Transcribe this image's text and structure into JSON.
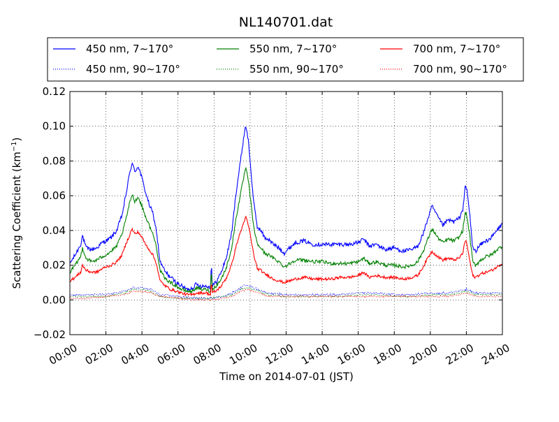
{
  "chart_data": {
    "type": "line",
    "title": "NL140701.dat",
    "xlabel": "Time on 2014-07-01 (JST)",
    "ylabel_main": "Scattering Coefficient (km",
    "ylabel_sup": "−1",
    "ylabel_close": ")",
    "xlim": [
      0,
      24
    ],
    "ylim": [
      -0.02,
      0.12
    ],
    "grid": true,
    "legend_position": "top (above plot)",
    "x_ticks": [
      0,
      2,
      4,
      6,
      8,
      10,
      12,
      14,
      16,
      18,
      20,
      22,
      24
    ],
    "x_tick_labels": [
      "00:00",
      "02:00",
      "04:00",
      "06:00",
      "08:00",
      "10:00",
      "12:00",
      "14:00",
      "16:00",
      "18:00",
      "20:00",
      "22:00",
      "24:00"
    ],
    "y_ticks": [
      -0.02,
      0.0,
      0.02,
      0.04,
      0.06,
      0.08,
      0.1,
      0.12
    ],
    "y_tick_labels": [
      "−0.02",
      "0.00",
      "0.02",
      "0.04",
      "0.06",
      "0.08",
      "0.10",
      "0.12"
    ],
    "series": [
      {
        "name": "450 nm, 7∼170°",
        "color": "#0000ff",
        "style": "solid",
        "x": [
          0,
          0.3,
          0.6,
          0.7,
          0.9,
          1.2,
          1.5,
          1.8,
          2.0,
          2.3,
          2.6,
          2.9,
          3.1,
          3.3,
          3.45,
          3.6,
          3.8,
          4.0,
          4.2,
          4.4,
          4.6,
          4.8,
          5.0,
          5.3,
          5.6,
          5.9,
          6.2,
          6.5,
          6.8,
          7.0,
          7.3,
          7.6,
          7.8,
          7.85,
          7.9,
          8.1,
          8.4,
          8.7,
          9.0,
          9.2,
          9.4,
          9.6,
          9.75,
          9.9,
          10.0,
          10.2,
          10.4,
          10.6,
          10.8,
          11.0,
          11.3,
          11.6,
          11.9,
          12.2,
          12.5,
          13.0,
          13.5,
          14.0,
          14.5,
          15.0,
          15.5,
          16.0,
          16.3,
          16.6,
          17.0,
          17.5,
          18.0,
          18.5,
          19.0,
          19.3,
          19.6,
          19.9,
          20.1,
          20.4,
          20.7,
          21.0,
          21.3,
          21.6,
          21.8,
          21.95,
          22.05,
          22.2,
          22.35,
          22.5,
          22.8,
          23.1,
          23.4,
          23.7,
          24.0
        ],
        "y": [
          0.021,
          0.026,
          0.032,
          0.037,
          0.03,
          0.029,
          0.03,
          0.033,
          0.034,
          0.036,
          0.04,
          0.049,
          0.06,
          0.072,
          0.079,
          0.074,
          0.077,
          0.07,
          0.062,
          0.055,
          0.05,
          0.04,
          0.022,
          0.016,
          0.013,
          0.01,
          0.008,
          0.006,
          0.007,
          0.009,
          0.008,
          0.008,
          0.007,
          0.023,
          0.008,
          0.01,
          0.016,
          0.025,
          0.04,
          0.06,
          0.075,
          0.09,
          0.101,
          0.092,
          0.08,
          0.056,
          0.042,
          0.04,
          0.036,
          0.035,
          0.032,
          0.03,
          0.027,
          0.03,
          0.033,
          0.034,
          0.032,
          0.032,
          0.032,
          0.032,
          0.032,
          0.033,
          0.035,
          0.031,
          0.032,
          0.029,
          0.03,
          0.028,
          0.029,
          0.031,
          0.038,
          0.048,
          0.054,
          0.048,
          0.043,
          0.046,
          0.045,
          0.047,
          0.052,
          0.066,
          0.062,
          0.048,
          0.03,
          0.028,
          0.032,
          0.034,
          0.036,
          0.04,
          0.044
        ],
        "noise": 0.0012
      },
      {
        "name": "550 nm, 7∼170°",
        "color": "#008000",
        "style": "solid",
        "x": [
          0,
          0.3,
          0.6,
          0.7,
          0.9,
          1.2,
          1.5,
          1.8,
          2.0,
          2.3,
          2.6,
          2.9,
          3.1,
          3.3,
          3.45,
          3.6,
          3.8,
          4.0,
          4.2,
          4.4,
          4.6,
          4.8,
          5.0,
          5.3,
          5.6,
          5.9,
          6.2,
          6.5,
          6.8,
          7.0,
          7.3,
          7.6,
          7.8,
          7.85,
          7.9,
          8.1,
          8.4,
          8.7,
          9.0,
          9.2,
          9.4,
          9.6,
          9.75,
          9.9,
          10.0,
          10.2,
          10.4,
          10.6,
          10.8,
          11.0,
          11.3,
          11.6,
          11.9,
          12.2,
          12.5,
          13.0,
          13.5,
          14.0,
          14.5,
          15.0,
          15.5,
          16.0,
          16.3,
          16.6,
          17.0,
          17.5,
          18.0,
          18.5,
          19.0,
          19.3,
          19.6,
          19.9,
          20.1,
          20.4,
          20.7,
          21.0,
          21.3,
          21.6,
          21.8,
          21.95,
          22.05,
          22.2,
          22.35,
          22.5,
          22.8,
          23.1,
          23.4,
          23.7,
          24.0
        ],
        "y": [
          0.016,
          0.02,
          0.025,
          0.03,
          0.024,
          0.022,
          0.023,
          0.025,
          0.026,
          0.028,
          0.031,
          0.038,
          0.046,
          0.055,
          0.061,
          0.057,
          0.059,
          0.054,
          0.048,
          0.043,
          0.038,
          0.031,
          0.017,
          0.012,
          0.01,
          0.008,
          0.006,
          0.005,
          0.005,
          0.007,
          0.006,
          0.006,
          0.005,
          0.018,
          0.006,
          0.008,
          0.012,
          0.019,
          0.031,
          0.046,
          0.057,
          0.068,
          0.076,
          0.069,
          0.06,
          0.042,
          0.032,
          0.03,
          0.027,
          0.026,
          0.024,
          0.022,
          0.019,
          0.021,
          0.023,
          0.023,
          0.022,
          0.022,
          0.021,
          0.021,
          0.021,
          0.022,
          0.024,
          0.021,
          0.022,
          0.02,
          0.02,
          0.019,
          0.02,
          0.022,
          0.028,
          0.036,
          0.041,
          0.036,
          0.033,
          0.035,
          0.034,
          0.036,
          0.04,
          0.051,
          0.047,
          0.036,
          0.022,
          0.02,
          0.023,
          0.025,
          0.026,
          0.029,
          0.031
        ],
        "noise": 0.001
      },
      {
        "name": "700 nm, 7∼170°",
        "color": "#ff0000",
        "style": "solid",
        "x": [
          0,
          0.3,
          0.6,
          0.7,
          0.9,
          1.2,
          1.5,
          1.8,
          2.0,
          2.3,
          2.6,
          2.9,
          3.1,
          3.3,
          3.45,
          3.6,
          3.8,
          4.0,
          4.2,
          4.4,
          4.6,
          4.8,
          5.0,
          5.3,
          5.6,
          5.9,
          6.2,
          6.5,
          6.8,
          7.0,
          7.3,
          7.6,
          7.8,
          7.85,
          7.9,
          8.1,
          8.4,
          8.7,
          9.0,
          9.2,
          9.4,
          9.6,
          9.75,
          9.9,
          10.0,
          10.2,
          10.4,
          10.6,
          10.8,
          11.0,
          11.3,
          11.6,
          11.9,
          12.2,
          12.5,
          13.0,
          13.5,
          14.0,
          14.5,
          15.0,
          15.5,
          16.0,
          16.3,
          16.6,
          17.0,
          17.5,
          18.0,
          18.5,
          19.0,
          19.3,
          19.6,
          19.9,
          20.1,
          20.4,
          20.7,
          21.0,
          21.3,
          21.6,
          21.8,
          21.95,
          22.05,
          22.2,
          22.35,
          22.5,
          22.8,
          23.1,
          23.4,
          23.7,
          24.0
        ],
        "y": [
          0.011,
          0.013,
          0.016,
          0.02,
          0.017,
          0.016,
          0.016,
          0.018,
          0.019,
          0.02,
          0.022,
          0.026,
          0.032,
          0.037,
          0.041,
          0.038,
          0.039,
          0.036,
          0.032,
          0.029,
          0.026,
          0.021,
          0.011,
          0.008,
          0.006,
          0.005,
          0.004,
          0.003,
          0.003,
          0.004,
          0.004,
          0.004,
          0.003,
          0.011,
          0.004,
          0.005,
          0.008,
          0.013,
          0.021,
          0.03,
          0.037,
          0.043,
          0.048,
          0.043,
          0.038,
          0.026,
          0.018,
          0.017,
          0.015,
          0.014,
          0.012,
          0.011,
          0.01,
          0.011,
          0.012,
          0.013,
          0.012,
          0.012,
          0.012,
          0.013,
          0.013,
          0.014,
          0.016,
          0.013,
          0.014,
          0.013,
          0.013,
          0.012,
          0.013,
          0.014,
          0.019,
          0.025,
          0.028,
          0.025,
          0.023,
          0.024,
          0.023,
          0.024,
          0.027,
          0.035,
          0.031,
          0.022,
          0.014,
          0.013,
          0.015,
          0.016,
          0.017,
          0.019,
          0.021
        ],
        "noise": 0.0008
      },
      {
        "name": "450 nm, 90∼170°",
        "color": "#0000ff",
        "style": "dotted",
        "x": [
          0,
          1.0,
          2.0,
          3.0,
          3.5,
          4.0,
          4.5,
          5.0,
          6.0,
          7.0,
          7.8,
          8.5,
          9.0,
          9.5,
          9.8,
          10.2,
          11.0,
          12.0,
          13.0,
          14.0,
          15.0,
          16.0,
          17.0,
          18.0,
          19.0,
          20.0,
          21.0,
          22.0,
          22.5,
          23.0,
          24.0
        ],
        "y": [
          0.003,
          0.003,
          0.003,
          0.005,
          0.007,
          0.007,
          0.006,
          0.003,
          0.002,
          0.001,
          0.001,
          0.002,
          0.004,
          0.007,
          0.009,
          0.007,
          0.004,
          0.003,
          0.003,
          0.003,
          0.003,
          0.004,
          0.004,
          0.003,
          0.003,
          0.004,
          0.004,
          0.006,
          0.004,
          0.004,
          0.004
        ],
        "noise": 0.0005
      },
      {
        "name": "550 nm, 90∼170°",
        "color": "#008000",
        "style": "dotted",
        "x": [
          0,
          1.0,
          2.0,
          3.0,
          3.5,
          4.0,
          4.5,
          5.0,
          6.0,
          7.0,
          7.8,
          8.5,
          9.0,
          9.5,
          9.8,
          10.2,
          11.0,
          12.0,
          13.0,
          14.0,
          15.0,
          16.0,
          17.0,
          18.0,
          19.0,
          20.0,
          21.0,
          22.0,
          22.5,
          23.0,
          24.0
        ],
        "y": [
          0.002,
          0.002,
          0.002,
          0.004,
          0.006,
          0.006,
          0.005,
          0.002,
          0.001,
          0.001,
          0.001,
          0.002,
          0.003,
          0.006,
          0.007,
          0.006,
          0.003,
          0.002,
          0.002,
          0.002,
          0.002,
          0.003,
          0.003,
          0.002,
          0.002,
          0.003,
          0.003,
          0.005,
          0.003,
          0.003,
          0.003
        ],
        "noise": 0.0004
      },
      {
        "name": "700 nm, 90∼170°",
        "color": "#ff0000",
        "style": "dotted",
        "x": [
          0,
          1.0,
          2.0,
          3.0,
          3.5,
          4.0,
          4.5,
          5.0,
          6.0,
          7.0,
          7.8,
          8.5,
          9.0,
          9.5,
          9.8,
          10.2,
          11.0,
          12.0,
          13.0,
          14.0,
          15.0,
          16.0,
          17.0,
          18.0,
          19.0,
          20.0,
          21.0,
          22.0,
          22.5,
          23.0,
          24.0
        ],
        "y": [
          0.001,
          0.001,
          0.002,
          0.003,
          0.005,
          0.005,
          0.004,
          0.002,
          0.001,
          0.0,
          0.0,
          0.001,
          0.002,
          0.005,
          0.006,
          0.005,
          0.002,
          0.002,
          0.002,
          0.002,
          0.002,
          0.002,
          0.002,
          0.002,
          0.002,
          0.002,
          0.002,
          0.004,
          0.002,
          0.002,
          0.002
        ],
        "noise": 0.0004
      }
    ]
  }
}
